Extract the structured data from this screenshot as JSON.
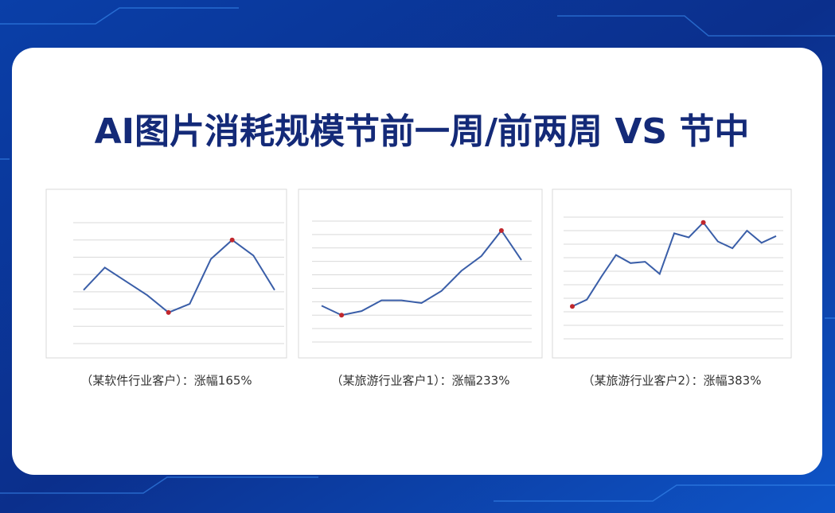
{
  "title": "AI图片消耗规模节前一周/前两周 VS 节中",
  "chart_data": [
    {
      "type": "line",
      "caption": "（某软件行业客户）：涨幅165%",
      "color": "#3a5ea8",
      "marker_color": "#c0272d",
      "grid": true,
      "values": [
        3.1,
        4.4,
        3.6,
        2.8,
        1.8,
        2.3,
        4.9,
        6.0,
        5.1,
        3.1
      ],
      "ylim": [
        0,
        7
      ],
      "yticks": [
        0,
        1,
        2,
        3,
        4,
        5,
        6,
        7
      ]
    },
    {
      "type": "line",
      "caption": "（某旅游行业客户1）：涨幅233%",
      "color": "#3a5ea8",
      "marker_color": "#c0272d",
      "grid": true,
      "values": [
        2.7,
        2.0,
        2.3,
        3.1,
        3.1,
        2.9,
        3.8,
        5.3,
        6.4,
        8.3,
        6.1
      ],
      "ylim": [
        0,
        9
      ],
      "yticks": [
        0,
        1,
        2,
        3,
        4,
        5,
        6,
        7,
        8,
        9
      ]
    },
    {
      "type": "line",
      "caption": "（某旅游行业客户2）：涨幅383%",
      "color": "#3a5ea8",
      "marker_color": "#c0272d",
      "grid": true,
      "values": [
        2.4,
        2.9,
        4.6,
        6.2,
        5.6,
        5.7,
        4.8,
        7.8,
        7.5,
        8.6,
        7.2,
        6.7,
        8.0,
        7.1,
        7.6
      ],
      "ylim": [
        0,
        9
      ],
      "yticks": [
        0,
        1,
        2,
        3,
        4,
        5,
        6,
        7,
        8,
        9
      ]
    }
  ]
}
